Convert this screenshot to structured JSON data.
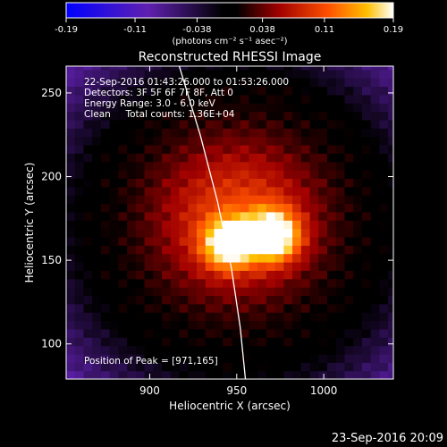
{
  "chart_data": {
    "type": "heatmap",
    "title": "Reconstructed RHESSI Image",
    "xlabel": "Heliocentric X (arcsec)",
    "ylabel": "Heliocentric Y (arcsec)",
    "xlim": [
      852,
      1040
    ],
    "ylim": [
      79,
      266
    ],
    "x_ticks": [
      900,
      950,
      1000
    ],
    "y_ticks": [
      100,
      150,
      200,
      250
    ],
    "colorbar": {
      "range": [
        -0.19,
        0.19
      ],
      "ticks": [
        "-0.19",
        "-0.11",
        "-0.038",
        "0.038",
        "0.11",
        "0.19"
      ],
      "units_label": "(photons cm⁻² s⁻¹ asec⁻²)"
    },
    "annotations": [
      "22-Sep-2016 01:43:26.000 to 01:53:26.000",
      "Detectors: 3F 5F 6F 7F 8F, Att 0",
      "Energy Range: 3.0 - 6.0 keV",
      "Clean     Total counts: 1.36E+04"
    ],
    "peak_label": "Position of Peak = [971,165]",
    "peak": {
      "x": 971,
      "y": 165
    },
    "limb": [
      {
        "x": 917,
        "y": 266
      },
      {
        "x": 929,
        "y": 225
      },
      {
        "x": 939,
        "y": 185
      },
      {
        "x": 947,
        "y": 145
      },
      {
        "x": 952,
        "y": 110
      },
      {
        "x": 955,
        "y": 79
      }
    ]
  },
  "footer_timestamp": "23-Sep-2016 20:09"
}
